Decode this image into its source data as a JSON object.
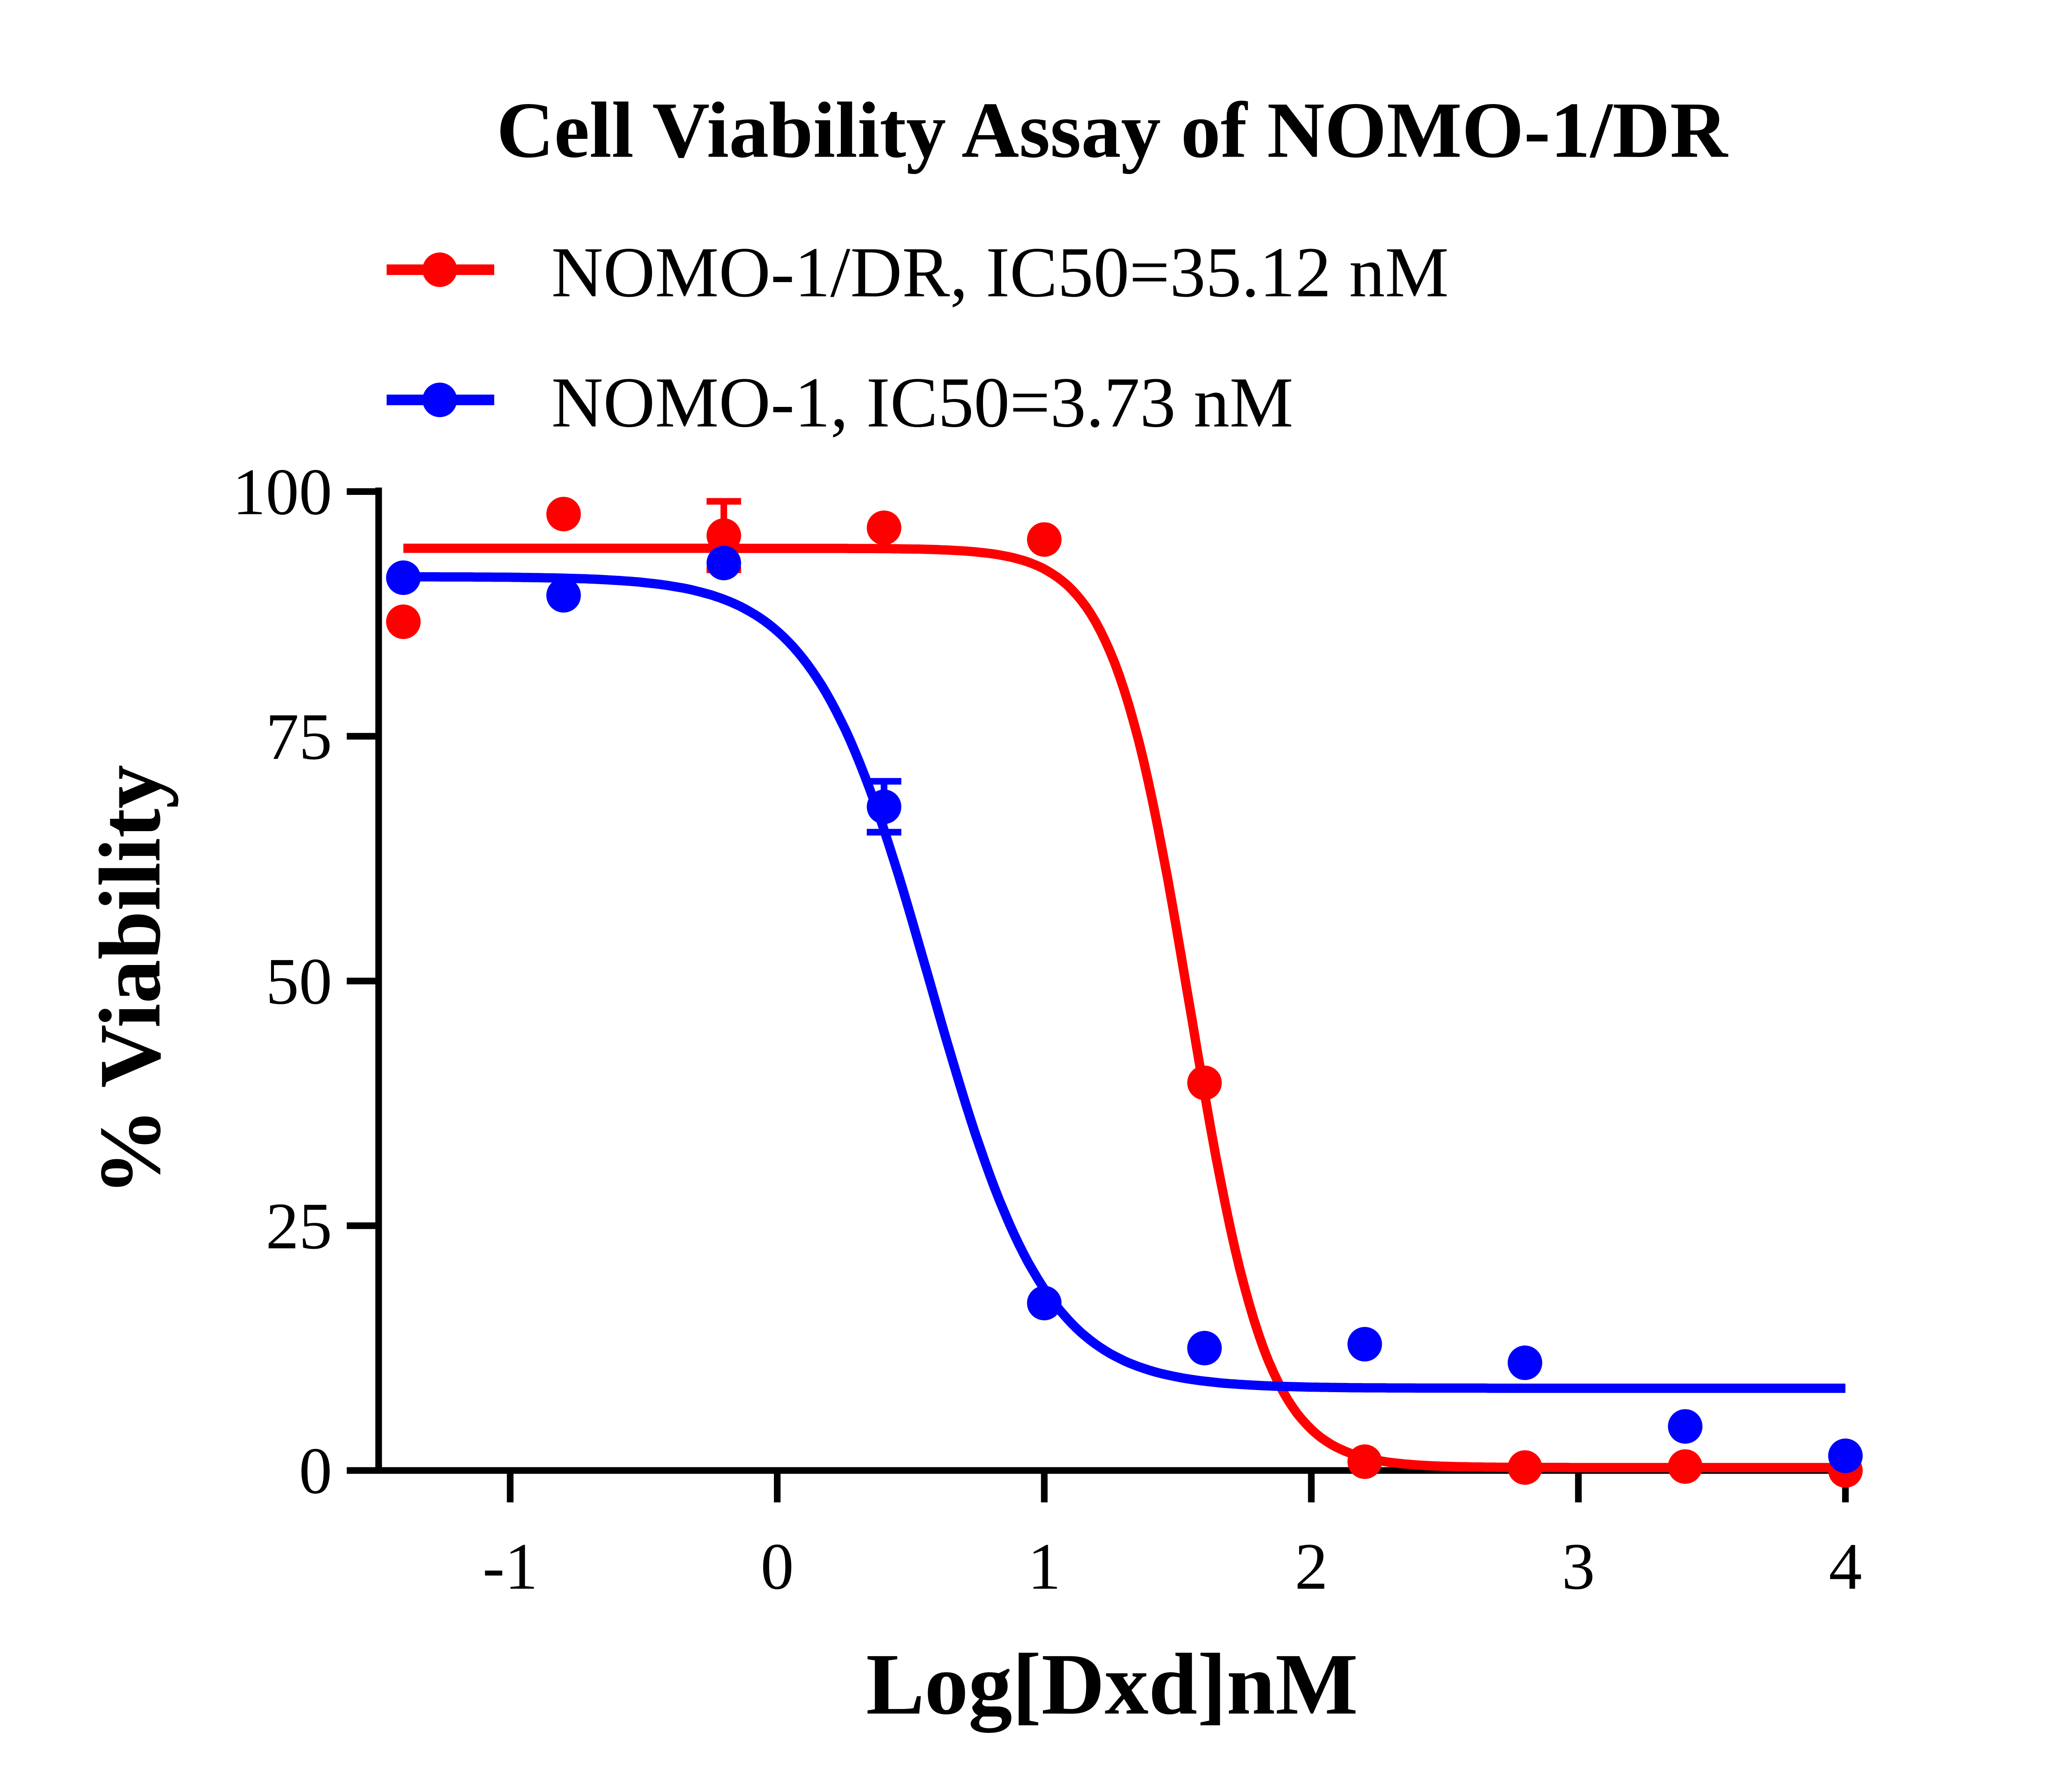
{
  "chart_data": {
    "type": "scatter",
    "title": "Cell Viability Assay of NOMO-1/DR",
    "xlabel": "Log[Dxd]nM",
    "ylabel": "% Viability",
    "xlim": [
      -1.5,
      4
    ],
    "ylim": [
      0,
      100
    ],
    "xticks": [
      -1,
      0,
      1,
      2,
      3,
      4
    ],
    "yticks": [
      0,
      25,
      50,
      75,
      100
    ],
    "grid": false,
    "legend_position": "top",
    "series": [
      {
        "name": "NOMO-1/DR, IC50=35.12 nM",
        "color": "#ff0000",
        "x": [
          -1.4,
          -0.8,
          -0.2,
          0.4,
          1.0,
          1.6,
          2.2,
          2.8,
          3.4,
          4.0
        ],
        "y": [
          86.7,
          97.7,
          95.5,
          96.3,
          95.1,
          39.6,
          0.9,
          0.3,
          0.4,
          0.0
        ],
        "error": [
          0,
          0,
          3.5,
          0,
          0,
          0,
          0,
          0,
          0,
          0
        ],
        "fit": {
          "top": 94.2,
          "bottom": 0.3,
          "log_ic50": 1.5456,
          "hill": 3.0,
          "x_range": [
            -1.4,
            4.0
          ]
        }
      },
      {
        "name": "NOMO-1, IC50=3.73 nM",
        "color": "#0000ff",
        "x": [
          -1.4,
          -0.8,
          -0.2,
          0.4,
          1.0,
          1.6,
          2.2,
          2.8,
          3.4,
          4.0
        ],
        "y": [
          91.2,
          89.4,
          92.7,
          67.8,
          17.1,
          12.5,
          12.9,
          11.0,
          4.5,
          1.5
        ],
        "error": [
          0,
          0,
          0,
          2.6,
          0,
          0,
          0,
          0,
          0,
          0
        ],
        "fit": {
          "top": 91.3,
          "bottom": 8.4,
          "log_ic50": 0.5717,
          "hill": 2.0,
          "x_range": [
            -1.4,
            4.0
          ]
        }
      }
    ]
  }
}
